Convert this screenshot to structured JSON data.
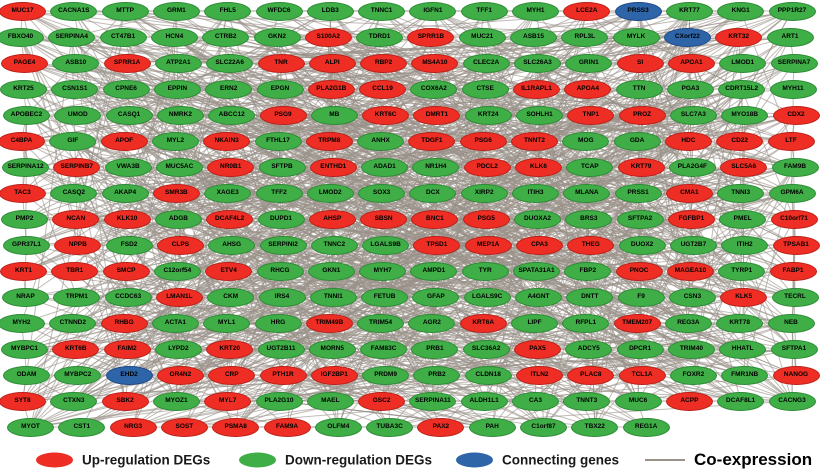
{
  "legend": {
    "up_label": "Up-regulation DEGs",
    "down_label": "Down-regulation DEGs",
    "connecting_label": "Connecting genes",
    "edge_label": "Co-expression"
  },
  "colors": {
    "up": "#ee2e24",
    "down": "#3fae47",
    "connecting": "#2e64a8",
    "edge": "#9a9189"
  },
  "network": {
    "node_types": {
      "u": "up",
      "d": "down",
      "c": "connecting"
    },
    "rows": [
      [
        "MUC17:u",
        "CACNA1S:d",
        "MTTP:d",
        "GRM1:d",
        "FHL5:d",
        "WFDC6:d",
        "LDB3:d",
        "TNNC1:d",
        "IGFN1:d",
        "TFF1:d",
        "MYH1:d",
        "LCE2A:u",
        "PRSS3:c",
        "KRT77:d",
        "KNG1:d",
        "PPP1R27:d"
      ],
      [
        "FBXO40:d",
        "SERPINA4:d",
        "CT47B1:d",
        "HCN4:d",
        "CTRB2:d",
        "GKN2:d",
        "S100A2:u",
        "TDRD1:d",
        "SPRR1B:u",
        "MUC21:d",
        "ASB15:d",
        "RPL3L:d",
        "MYLK:d",
        "CXorf22:c",
        "KRT32:u",
        "ART1:d"
      ],
      [
        "PAGE4:u",
        "ASB10:d",
        "SPRR1A:u",
        "ATP2A1:d",
        "SLC22A6:d",
        "TNR:u",
        "ALPI:u",
        "RBP2:u",
        "MS4A10:u",
        "CLEC2A:d",
        "SLC26A3:d",
        "GRIN1:d",
        "SI:u",
        "APOA1:u",
        "LMOD1:d",
        "SERPINA7:d"
      ],
      [
        "KRT25:d",
        "CSN1S1:d",
        "CPNE6:d",
        "EPPIN:d",
        "ERN2:d",
        "EPGN:d",
        "PLA2G1B:u",
        "CCL19:u",
        "COX6A2:d",
        "CTSE:d",
        "IL1RAPL1:u",
        "APOA4:u",
        "TTN:d",
        "PGA3:d",
        "CDRT15L2:d",
        "MYH11:d"
      ],
      [
        "APOBEC2:d",
        "UMOD:d",
        "CASQ1:d",
        "NMRK2:d",
        "ABCC12:d",
        "PSG9:u",
        "MB:d",
        "KRT6C:u",
        "DMRT1:u",
        "KRT24:d",
        "SOHLH1:d",
        "TNP1:u",
        "PROZ:u",
        "SLC7A3:d",
        "MYO18B:d",
        "CDX2:u"
      ],
      [
        "C4BPA:u",
        "GIF:d",
        "APOF:u",
        "MYL2:d",
        "NKAIN3:u",
        "FTHL17:d",
        "TRPM8:u",
        "ANHX:d",
        "TDGF1:u",
        "PSG6:u",
        "TNNT2:u",
        "MOG:d",
        "GDA:d",
        "HDC:u",
        "CD22:u",
        "LTF:u"
      ],
      [
        "SERPINA12:d",
        "SERPINB7:u",
        "VWA3B:d",
        "MUC5AC:d",
        "NR0B1:u",
        "SFTPB:d",
        "ENTHD1:u",
        "ADAD1:d",
        "NR1H4:d",
        "PDCL2:u",
        "KLK6:u",
        "TCAP:d",
        "KRT79:u",
        "PLA2G4F:d",
        "SLC5A6:u",
        "FAM9B:d"
      ],
      [
        "TAC3:u",
        "CASQ2:d",
        "AKAP4:d",
        "SMR3B:u",
        "XAGE3:d",
        "TFF2:d",
        "LMOD2:d",
        "SOX3:d",
        "DCX:d",
        "XIRP2:d",
        "ITIH3:d",
        "MLANA:d",
        "PRSS1:d",
        "CMA1:u",
        "TNNI3:d",
        "GPM6A:d"
      ],
      [
        "PMP2:d",
        "NCAN:u",
        "KLK10:u",
        "ADGB:d",
        "DCAF4L2:u",
        "DUPD1:d",
        "AHSP:u",
        "SBSN:u",
        "BNC1:u",
        "PSG5:u",
        "DUOXA2:d",
        "BRS3:d",
        "SFTPA2:d",
        "FGFBP1:u",
        "PMEL:d",
        "C10orf71:u"
      ],
      [
        "GPR37L1:d",
        "NPPB:u",
        "FSD2:d",
        "CLPS:u",
        "AHSG:d",
        "SERPINI2:d",
        "TNNC2:d",
        "LGALS9B:d",
        "TPSD1:u",
        "MEP1A:u",
        "CPA3:u",
        "THEG:u",
        "DUOX2:d",
        "UGT2B7:d",
        "ITIH2:d",
        "TPSAB1:u"
      ],
      [
        "KRT1:u",
        "TBR1:u",
        "SMCP:u",
        "C12orf54:d",
        "ETV4:u",
        "RHCG:d",
        "GKN1:d",
        "MYH7:d",
        "AMPD1:d",
        "TYR:d",
        "SPATA31A1:d",
        "FBP2:d",
        "PNOC:u",
        "MAGEA10:u",
        "TYRP1:d",
        "FABP1:u"
      ],
      [
        "NRAP:d",
        "TRPM1:d",
        "CCDC63:d",
        "LMAN1L:u",
        "CKM:d",
        "IRS4:d",
        "TNNI1:d",
        "FETUB:d",
        "GFAP:d",
        "LGALS9C:d",
        "A4GNT:d",
        "DNTT:d",
        "F9:d",
        "CSN3:d",
        "KLK5:u",
        "TECRL:d"
      ],
      [
        "MYH2:d",
        "CTNND2:d",
        "RHBG:u",
        "ACTA1:d",
        "MYL1:d",
        "HRG:d",
        "TRIM49B:u",
        "TRIM54:d",
        "AGR2:d",
        "KRT6A:u",
        "LIPF:d",
        "RFPL1:d",
        "TMEM207:u",
        "REG3A:d",
        "KRT78:d",
        "NEB:d"
      ],
      [
        "MYBPC1:d",
        "KRT6B:u",
        "FAIM2:u",
        "LYPD2:d",
        "KRT20:u",
        "UGT2B11:d",
        "MORN5:d",
        "FAM83C:d",
        "PRB1:d",
        "SLC36A2:d",
        "PAX5:u",
        "ADCY5:d",
        "DPCR1:d",
        "TRIM40:d",
        "HHATL:d",
        "SFTPA1:d"
      ],
      [
        "ODAM:d",
        "MYBPC2:d",
        "EHD2:c",
        "OR4N2:u",
        "CRP:u",
        "PTH1R:u",
        "IGF2BP1:u",
        "PRDM9:d",
        "PRB2:d",
        "CLDN18:d",
        "ITLN2:u",
        "PLAC8:u",
        "TCL1A:u",
        "FOXR2:d",
        "FMR1NB:d",
        "NANOG:u"
      ],
      [
        "SYT8:u",
        "CTXN3:d",
        "SBK2:u",
        "MYOZ1:d",
        "MYL7:u",
        "PLA2G10:d",
        "MAEL:d",
        "GSC2:u",
        "SERPINA11:d",
        "ALDH1L1:d",
        "CA3:d",
        "TNNT3:d",
        "MUC6:d",
        "ACPP:u",
        "DCAF8L1:d",
        "CACNG3:d"
      ],
      [
        "MYOT:d",
        "CST1:d",
        "NRG3:u",
        "SOST:u",
        "PSMA8:u",
        "FAM9A:u",
        "OLFM4:d",
        "TUBA3C:d",
        "PAX2:u",
        "PAH:d",
        "C1orf87:d",
        "TBX22:d",
        "REG1A:d"
      ]
    ]
  }
}
